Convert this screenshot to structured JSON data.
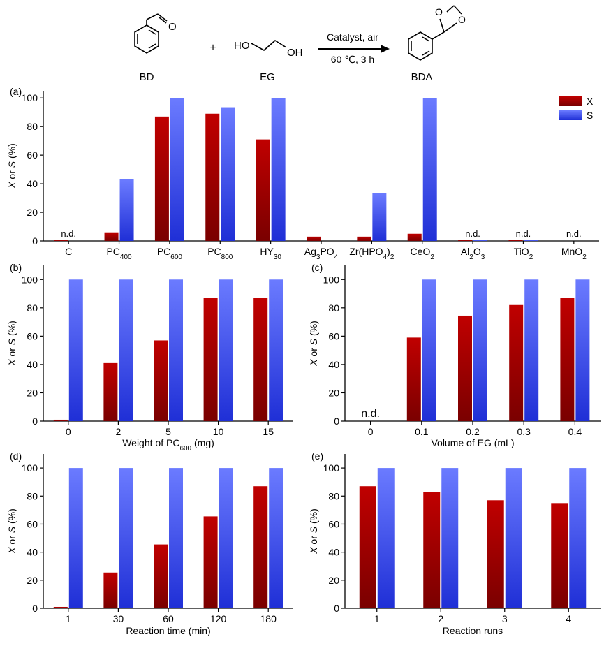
{
  "scheme": {
    "reactant1_label": "BD",
    "reactant2_label": "EG",
    "product_label": "BDA",
    "plus": "+",
    "reactant1_atom": "O",
    "reactant2_atom_left": "HO",
    "reactant2_atom_right": "OH",
    "product_atom_top_left": "O",
    "product_atom_top_right": "O",
    "condition_top": "Catalyst, air",
    "condition_bottom": "60 ℃, 3 h"
  },
  "colors": {
    "X": "#c00000",
    "X_dark": "#7a0000",
    "S": "#6b7bff",
    "S_dark": "#1f2fd6"
  },
  "chart_data": [
    {
      "panel": "(a)",
      "type": "bar",
      "categories": [
        "C",
        "PC400",
        "PC600",
        "PC800",
        "HY30",
        "Ag3PO4",
        "Zr(HPO4)2",
        "CeO2",
        "Al2O3",
        "TiO2",
        "MnO2"
      ],
      "series": [
        {
          "name": "X",
          "values": [
            0.5,
            6,
            87,
            89,
            71,
            3,
            3,
            5,
            0.5,
            0.5,
            0
          ]
        },
        {
          "name": "S",
          "values": [
            0,
            43,
            100,
            93.5,
            100,
            0,
            33.5,
            100,
            0.5,
            0.5,
            0
          ]
        }
      ],
      "annotations": [
        {
          "category": "C",
          "text": "n.d."
        },
        {
          "category": "Al2O3",
          "text": "n.d."
        },
        {
          "category": "TiO2",
          "text": "n.d."
        },
        {
          "category": "MnO2",
          "text": "n.d."
        }
      ],
      "xlabel": "",
      "ylabel": "X or S (%)",
      "ylim": [
        0,
        105
      ],
      "yticks": [
        0,
        20,
        40,
        60,
        80,
        100
      ],
      "legend": [
        "X",
        "S"
      ],
      "legend_position": "top-right"
    },
    {
      "panel": "(b)",
      "type": "bar",
      "categories": [
        "0",
        "2",
        "5",
        "10",
        "15"
      ],
      "series": [
        {
          "name": "X",
          "values": [
            1,
            41,
            57,
            87,
            87
          ]
        },
        {
          "name": "S",
          "values": [
            100,
            100,
            100,
            100,
            100
          ]
        }
      ],
      "annotations": [],
      "xlabel": "Weight of PC600 (mg)",
      "ylabel": "X or S (%)",
      "ylim": [
        0,
        110
      ],
      "yticks": [
        0,
        20,
        40,
        60,
        80,
        100
      ]
    },
    {
      "panel": "(c)",
      "type": "bar",
      "categories": [
        "0",
        "0.1",
        "0.2",
        "0.3",
        "0.4"
      ],
      "series": [
        {
          "name": "X",
          "values": [
            0,
            59,
            74.5,
            82,
            87
          ]
        },
        {
          "name": "S",
          "values": [
            0,
            100,
            100,
            100,
            100
          ]
        }
      ],
      "annotations": [
        {
          "category": "0",
          "text": "n.d."
        }
      ],
      "xlabel": "Volume of EG (mL)",
      "ylabel": "X or S (%)",
      "ylim": [
        0,
        110
      ],
      "yticks": [
        0,
        20,
        40,
        60,
        80,
        100
      ]
    },
    {
      "panel": "(d)",
      "type": "bar",
      "categories": [
        "1",
        "30",
        "60",
        "120",
        "180"
      ],
      "series": [
        {
          "name": "X",
          "values": [
            1,
            25.5,
            45.5,
            65.5,
            87
          ]
        },
        {
          "name": "S",
          "values": [
            100,
            100,
            100,
            100,
            100
          ]
        }
      ],
      "annotations": [],
      "xlabel": "Reaction time (min)",
      "ylabel": "X or S (%)",
      "ylim": [
        0,
        110
      ],
      "yticks": [
        0,
        20,
        40,
        60,
        80,
        100
      ]
    },
    {
      "panel": "(e)",
      "type": "bar",
      "categories": [
        "1",
        "2",
        "3",
        "4"
      ],
      "series": [
        {
          "name": "X",
          "values": [
            87,
            83,
            77,
            75
          ]
        },
        {
          "name": "S",
          "values": [
            100,
            100,
            100,
            100
          ]
        }
      ],
      "annotations": [],
      "xlabel": "Reaction runs",
      "ylabel": "X or S (%)",
      "ylim": [
        0,
        110
      ],
      "yticks": [
        0,
        20,
        40,
        60,
        80,
        100
      ]
    }
  ]
}
